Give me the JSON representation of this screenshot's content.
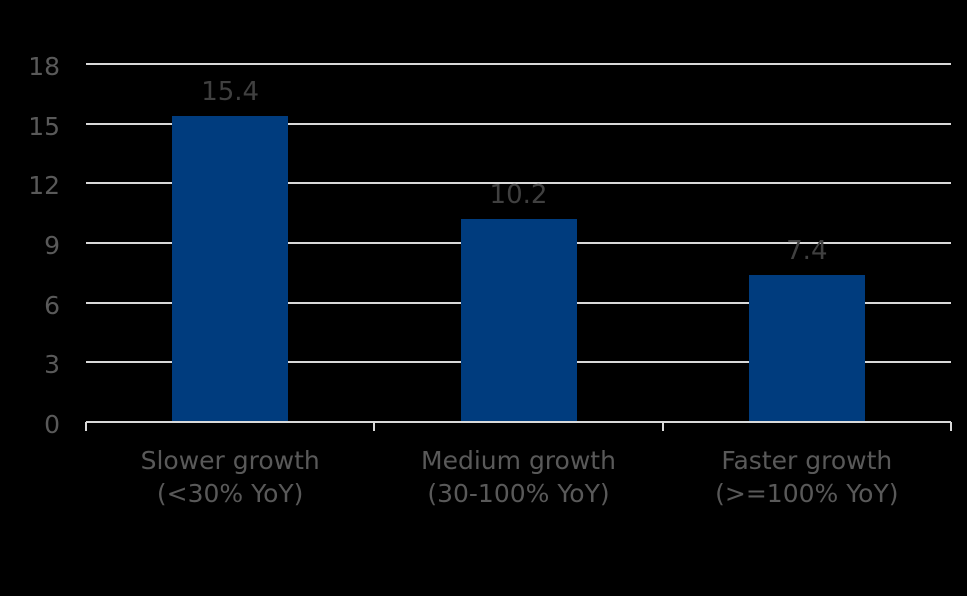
{
  "chart": {
    "background_color": "#000000",
    "bar_color": "#003c7e",
    "gridline_color": "#d9d9d9",
    "axis_color": "#d9d9d9",
    "tick_label_color": "#595959",
    "data_label_color": "#404040",
    "category_label_color": "#595959"
  },
  "chart_data": {
    "type": "bar",
    "categories": [
      "Slower growth (<30% YoY)",
      "Medium growth (30-100% YoY)",
      "Faster growth (>=100% YoY)"
    ],
    "category_lines": [
      [
        "Slower growth",
        "(<30% YoY)"
      ],
      [
        "Medium growth",
        "(30-100% YoY)"
      ],
      [
        "Faster growth",
        "(>=100% YoY)"
      ]
    ],
    "values": [
      15.4,
      10.2,
      7.4
    ],
    "data_labels": [
      "15.4",
      "10.2",
      "7.4"
    ],
    "ylim": [
      0,
      18
    ],
    "yticks": [
      0,
      3,
      6,
      9,
      12,
      15,
      18
    ],
    "grid": true,
    "legend": false
  }
}
